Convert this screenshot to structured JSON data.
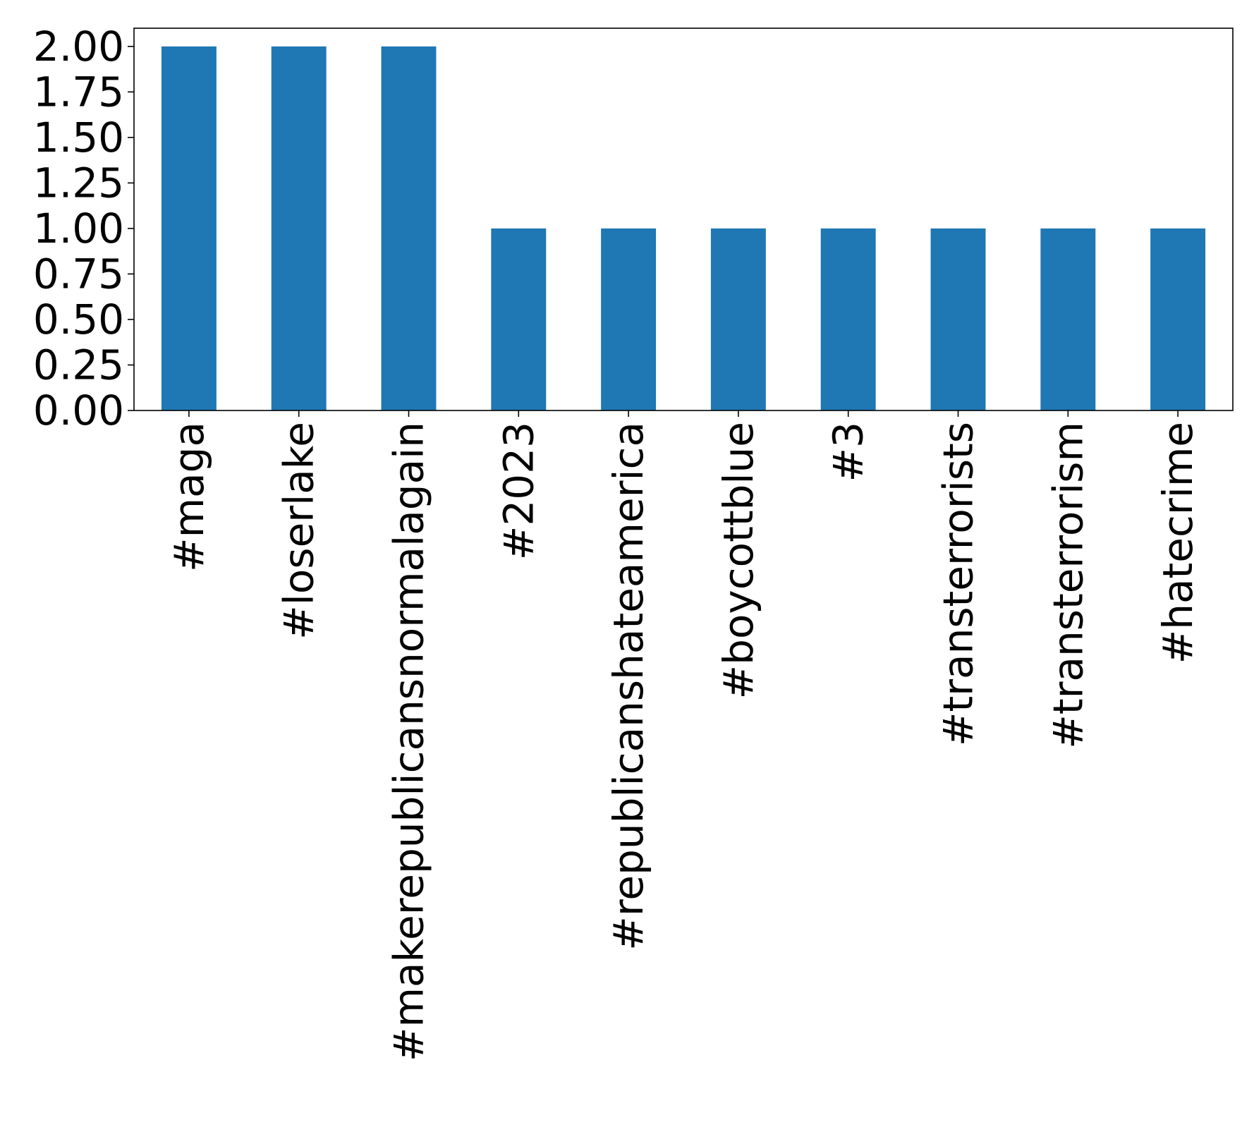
{
  "chart_data": {
    "type": "bar",
    "title": "",
    "xlabel": "",
    "ylabel": "",
    "categories": [
      "#maga",
      "#loserlake",
      "#makerepublicansnormalagain",
      "#2023",
      "#republicanshateamerica",
      "#boycottblue",
      "#3",
      "#transterrorists",
      "#transterrorism",
      "#hatecrime"
    ],
    "values": [
      2,
      2,
      2,
      1,
      1,
      1,
      1,
      1,
      1,
      1
    ],
    "ylim": [
      0,
      2.1
    ],
    "yticks": [
      "0.00",
      "0.25",
      "0.50",
      "0.75",
      "1.00",
      "1.25",
      "1.50",
      "1.75",
      "2.00"
    ],
    "bar_color": "#1f77b4",
    "grid": false,
    "legend": "none"
  }
}
